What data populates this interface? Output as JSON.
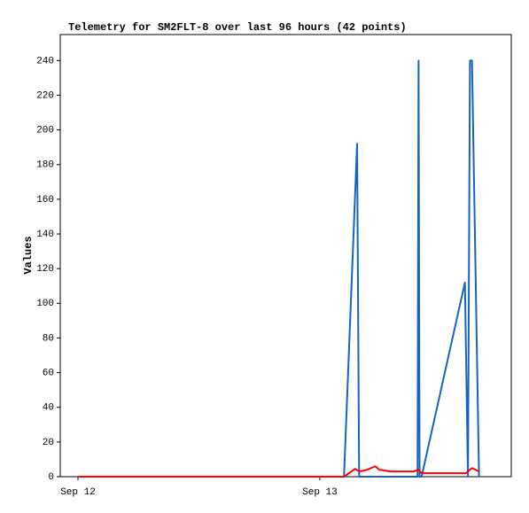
{
  "chart_data": {
    "type": "line",
    "title": "Telemetry for SM2FLT-8 over last 96 hours (42 points)",
    "y_label": "Values",
    "xlim": [
      -1.76,
      43.0
    ],
    "xticks": [
      {
        "value": 0,
        "label": "Sep 12"
      },
      {
        "value": 24,
        "label": "Sep 13"
      }
    ],
    "ylim": [
      0,
      255
    ],
    "yticks": [
      0,
      20,
      40,
      60,
      80,
      100,
      120,
      140,
      160,
      180,
      200,
      220,
      240
    ],
    "grid": false,
    "series": [
      {
        "color": "#1565c0",
        "x": [
          0,
          26.4,
          27.7,
          27.9,
          33.7,
          33.8,
          33.9,
          34.1,
          38.4,
          38.7,
          38.9,
          39.1,
          39.8
        ],
        "values": [
          0,
          0,
          192,
          0,
          0,
          240,
          0,
          0,
          112,
          0,
          240,
          240,
          0
        ]
      },
      {
        "color": "#ff0000",
        "x": [
          0,
          26.4,
          27.5,
          27.9,
          28.7,
          29.5,
          29.9,
          31.0,
          33.3,
          33.8,
          34.1,
          38.5,
          39.1,
          39.8
        ],
        "values": [
          0,
          0,
          4.5,
          3,
          4,
          6,
          4,
          3,
          3,
          4,
          2,
          2,
          5,
          3
        ]
      }
    ]
  }
}
